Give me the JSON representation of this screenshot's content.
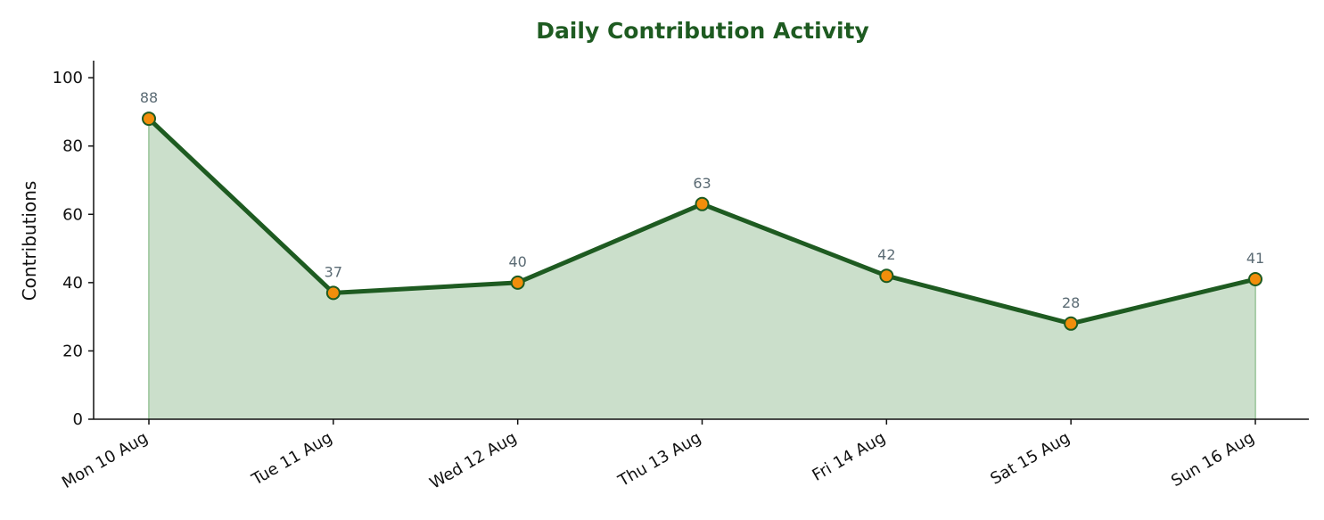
{
  "chart_data": {
    "type": "area",
    "title": "Daily Contribution Activity",
    "xlabel": "",
    "ylabel": "Contributions",
    "categories": [
      "Mon 10 Aug",
      "Tue 11 Aug",
      "Wed 12 Aug",
      "Thu 13 Aug",
      "Fri 14 Aug",
      "Sat 15 Aug",
      "Sun 16 Aug"
    ],
    "series": [
      {
        "values": [
          88,
          37,
          40,
          63,
          42,
          28,
          41
        ]
      }
    ],
    "ylim": [
      0,
      105
    ],
    "yticks": [
      0,
      20,
      40,
      60,
      80,
      100
    ],
    "grid": false,
    "legend": "none",
    "data_labels": true,
    "colors": {
      "line": "#1e5b21",
      "fill": "#cbdfcb",
      "fill_edge": "#a9cda9",
      "marker": "#f28e0b",
      "marker_edge": "#1e5b21",
      "title": "#1e5b21",
      "data_label": "#5b6b74",
      "axis": "#111111"
    }
  }
}
